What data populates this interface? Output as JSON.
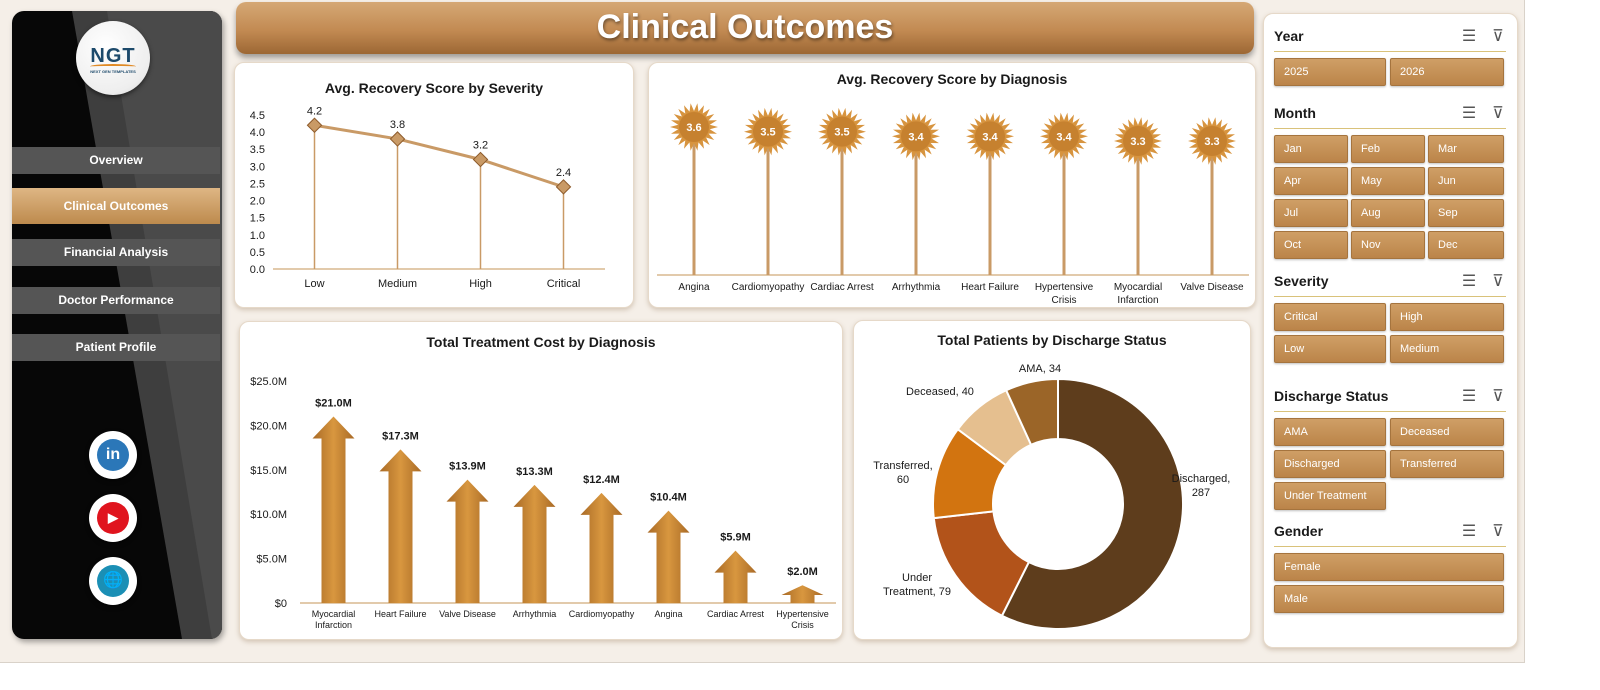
{
  "title": "Clinical Outcomes",
  "sidebar": {
    "logo_text": "NGT",
    "logo_subtext": "NEXT GEN TEMPLATES",
    "items": [
      {
        "label": "Overview",
        "active": false
      },
      {
        "label": "Clinical Outcomes",
        "active": true
      },
      {
        "label": "Financial Analysis",
        "active": false
      },
      {
        "label": "Doctor Performance",
        "active": false
      },
      {
        "label": "Patient Profile",
        "active": false
      }
    ],
    "social": [
      {
        "icon": "linkedin-icon",
        "glyph": "in",
        "color": "#2b77b8"
      },
      {
        "icon": "youtube-icon",
        "glyph": "▶",
        "color": "#e0141e"
      },
      {
        "icon": "globe-icon",
        "glyph": "🌐",
        "color": "#1b8fb5"
      }
    ]
  },
  "colors": {
    "accent": "#c28a52",
    "accent_dark": "#8d5a2a",
    "line": "#c99a66",
    "chip": "#c58f56"
  },
  "charts": {
    "severity": {
      "title": "Avg. Recovery Score by Severity"
    },
    "diagnosis_score": {
      "title": "Avg. Recovery Score by Diagnosis"
    },
    "cost": {
      "title": "Total Treatment Cost by Diagnosis"
    },
    "discharge": {
      "title": "Total Patients by Discharge Status"
    }
  },
  "chart_data": [
    {
      "type": "line",
      "title": "Avg. Recovery Score by Severity",
      "categories": [
        "Low",
        "Medium",
        "High",
        "Critical"
      ],
      "values": [
        4.2,
        3.8,
        3.2,
        2.4
      ],
      "ylim": [
        0,
        4.5
      ],
      "yticks": [
        "0.0",
        "0.5",
        "1.0",
        "1.5",
        "2.0",
        "2.5",
        "3.0",
        "3.5",
        "4.0",
        "4.5"
      ],
      "data_labels": [
        "4.2",
        "3.8",
        "3.2",
        "2.4"
      ]
    },
    {
      "type": "bar",
      "title": "Avg. Recovery Score by Diagnosis",
      "categories": [
        "Angina",
        "Cardiomyopathy",
        "Cardiac Arrest",
        "Arrhythmia",
        "Heart Failure",
        "Hypertensive Crisis",
        "Myocardial Infarction",
        "Valve Disease"
      ],
      "values": [
        3.6,
        3.5,
        3.5,
        3.4,
        3.4,
        3.4,
        3.3,
        3.3
      ],
      "data_labels": [
        "3.6",
        "3.5",
        "3.5",
        "3.4",
        "3.4",
        "3.4",
        "3.3",
        "3.3"
      ]
    },
    {
      "type": "bar",
      "title": "Total Treatment Cost by Diagnosis",
      "categories": [
        "Myocardial Infarction",
        "Heart Failure",
        "Valve Disease",
        "Arrhythmia",
        "Cardiomyopathy",
        "Angina",
        "Cardiac Arrest",
        "Hypertensive Crisis"
      ],
      "values": [
        21.0,
        17.3,
        13.9,
        13.3,
        12.4,
        10.4,
        5.9,
        2.0
      ],
      "data_labels": [
        "$21.0M",
        "$17.3M",
        "$13.9M",
        "$13.3M",
        "$12.4M",
        "$10.4M",
        "$5.9M",
        "$2.0M"
      ],
      "ylim": [
        0,
        25
      ],
      "yticks": [
        "$0",
        "$5.0M",
        "$10.0M",
        "$15.0M",
        "$20.0M",
        "$25.0M"
      ]
    },
    {
      "type": "pie",
      "title": "Total Patients by Discharge Status",
      "categories": [
        "Discharged",
        "Under Treatment",
        "Transferred",
        "Deceased",
        "AMA"
      ],
      "values": [
        287,
        79,
        60,
        40,
        34
      ],
      "colors": [
        "#5e3d1c",
        "#b2531a",
        "#d27410",
        "#e5bf8f",
        "#9b6528"
      ],
      "data_labels": [
        "Discharged,\n287",
        "Under\nTreatment, 79",
        "Transferred,\n60",
        "Deceased, 40",
        "AMA, 34"
      ]
    }
  ],
  "slicers": [
    {
      "title": "Year",
      "items": [
        "2025",
        "2026"
      ]
    },
    {
      "title": "Month",
      "items": [
        "Jan",
        "Feb",
        "Mar",
        "Apr",
        "May",
        "Jun",
        "Jul",
        "Aug",
        "Sep",
        "Oct",
        "Nov",
        "Dec"
      ]
    },
    {
      "title": "Severity",
      "items": [
        "Critical",
        "High",
        "Low",
        "Medium"
      ]
    },
    {
      "title": "Discharge Status",
      "items": [
        "AMA",
        "Deceased",
        "Discharged",
        "Transferred",
        "Under Treatment"
      ]
    },
    {
      "title": "Gender",
      "items": [
        "Female",
        "Male"
      ]
    }
  ]
}
